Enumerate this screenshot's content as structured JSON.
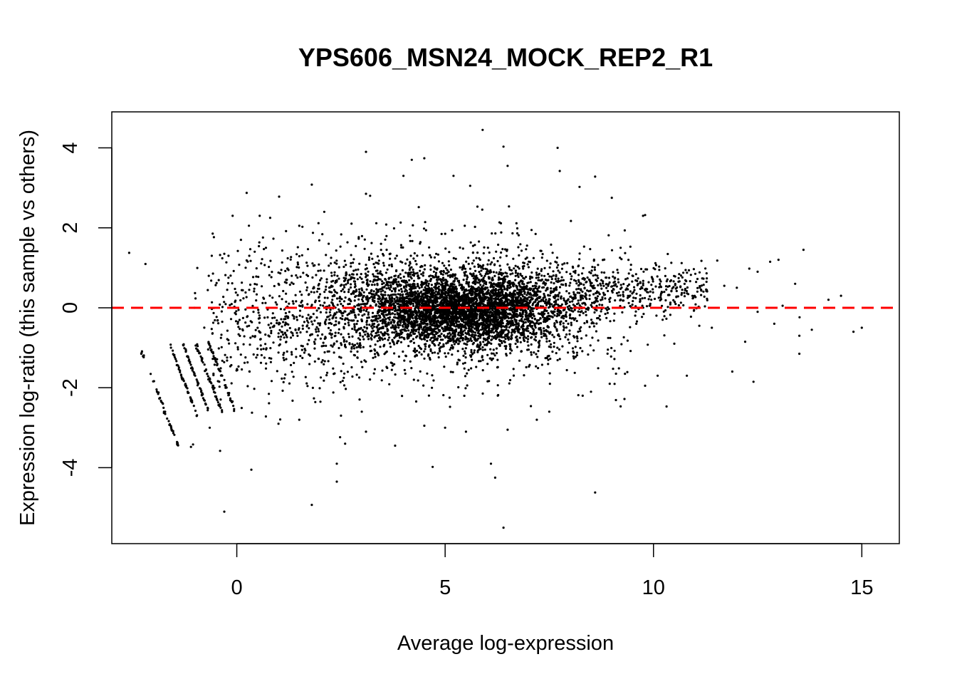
{
  "chart_data": {
    "type": "scatter",
    "title": "YPS606_MSN24_MOCK_REP2_R1",
    "xlabel": "Average log-expression",
    "ylabel": "Expression log-ratio (this sample vs others)",
    "xlim": [
      -3,
      15.9
    ],
    "ylim": [
      -5.9,
      4.9
    ],
    "xticks": [
      0,
      5,
      10,
      15
    ],
    "yticks": [
      -4,
      -2,
      0,
      2,
      4
    ],
    "grid": false,
    "reference_line": {
      "y": 0,
      "color": "#ff0000",
      "style": "dashed"
    },
    "point_color": "#000000",
    "points": [
      [
        5.9,
        4.45
      ],
      [
        6.4,
        4.03
      ],
      [
        7.7,
        4.0
      ],
      [
        4.2,
        3.7
      ],
      [
        4.5,
        3.74
      ],
      [
        3.1,
        3.9
      ],
      [
        1.8,
        3.08
      ],
      [
        3.1,
        2.85
      ],
      [
        3.2,
        2.8
      ],
      [
        4.0,
        3.3
      ],
      [
        5.2,
        3.3
      ],
      [
        5.6,
        3.05
      ],
      [
        6.5,
        3.55
      ],
      [
        7.75,
        3.42
      ],
      [
        8.6,
        3.28
      ],
      [
        9.0,
        2.75
      ],
      [
        9.75,
        2.3
      ],
      [
        9.8,
        2.32
      ],
      [
        -0.1,
        2.3
      ],
      [
        0.55,
        2.3
      ],
      [
        0.8,
        2.25
      ],
      [
        2.1,
        2.4
      ],
      [
        0.1,
        1.7
      ],
      [
        0.7,
        1.5
      ],
      [
        1.5,
        2.05
      ],
      [
        -0.6,
        1.3
      ],
      [
        -0.4,
        1.32
      ],
      [
        -0.3,
        1.35
      ],
      [
        -0.2,
        1.3
      ],
      [
        0.3,
        1.3
      ],
      [
        1.0,
        0.6
      ],
      [
        1.2,
        0.7
      ],
      [
        0.4,
        -0.1
      ],
      [
        0.8,
        -0.5
      ],
      [
        11.7,
        0.55
      ],
      [
        12.0,
        0.5
      ],
      [
        12.3,
        0.98
      ],
      [
        12.5,
        0.9
      ],
      [
        12.8,
        1.15
      ],
      [
        13.0,
        1.2
      ],
      [
        13.6,
        1.45
      ],
      [
        13.4,
        0.6
      ],
      [
        14.2,
        0.2
      ],
      [
        14.5,
        0.3
      ],
      [
        13.1,
        0.05
      ],
      [
        15.0,
        -0.5
      ],
      [
        14.8,
        -0.6
      ],
      [
        13.5,
        -0.7
      ],
      [
        13.8,
        -0.55
      ],
      [
        13.5,
        -1.15
      ],
      [
        12.4,
        -1.85
      ],
      [
        12.2,
        -0.85
      ],
      [
        12.9,
        -0.4
      ],
      [
        12.5,
        -0.1
      ],
      [
        11.4,
        -0.5
      ],
      [
        11.1,
        -0.45
      ],
      [
        10.8,
        -1.7
      ],
      [
        10.1,
        -1.7
      ],
      [
        9.8,
        -1.95
      ],
      [
        10.5,
        -0.9
      ],
      [
        8.6,
        -4.62
      ],
      [
        6.4,
        -5.5
      ],
      [
        6.1,
        -3.9
      ],
      [
        6.2,
        -4.25
      ],
      [
        4.7,
        -3.98
      ],
      [
        3.8,
        -3.45
      ],
      [
        3.1,
        -3.1
      ],
      [
        2.6,
        -3.4
      ],
      [
        2.4,
        -4.35
      ],
      [
        2.4,
        -3.9
      ],
      [
        1.8,
        -4.93
      ],
      [
        0.35,
        -4.05
      ],
      [
        -0.3,
        -5.1
      ],
      [
        -0.4,
        -3.58
      ],
      [
        -1.1,
        -3.48
      ],
      [
        -1.05,
        -3.42
      ],
      [
        -0.65,
        -3.0
      ],
      [
        4.5,
        -2.95
      ],
      [
        5.0,
        -3.0
      ],
      [
        5.5,
        -3.1
      ],
      [
        6.5,
        -3.05
      ],
      [
        7.2,
        -2.8
      ],
      [
        7.5,
        -2.6
      ],
      [
        8.3,
        -2.2
      ],
      [
        8.5,
        -2.1
      ],
      [
        8.95,
        -1.9
      ],
      [
        3.0,
        -2.6
      ],
      [
        2.5,
        -2.7
      ],
      [
        1.5,
        -2.8
      ],
      [
        1.0,
        -2.9
      ]
    ]
  }
}
